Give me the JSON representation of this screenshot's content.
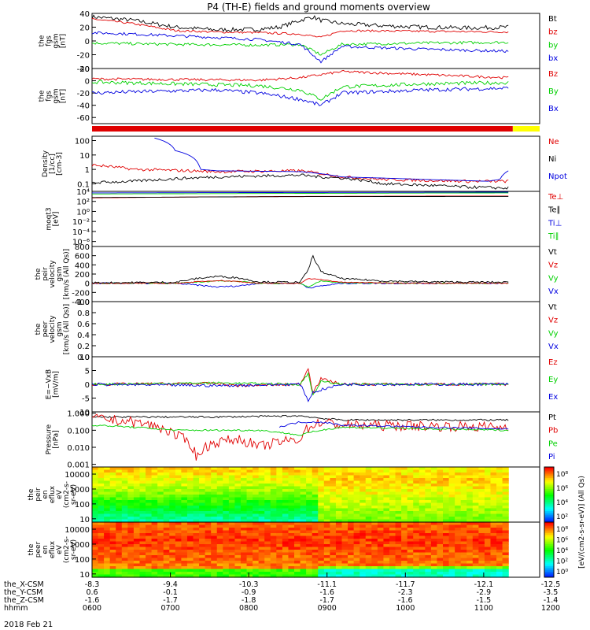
{
  "title": "P4 (TH-E) fields and ground moments overview",
  "date": "2018 Feb 21",
  "colors": {
    "black": "#000000",
    "red": "#e00000",
    "green": "#00d000",
    "blue": "#0000e0",
    "yellow": "#ffff00"
  },
  "chart_data": [
    {
      "type": "line",
      "ylabel": [
        "the",
        "fgs",
        "gsm",
        "[nT]"
      ],
      "ylim": [
        -40,
        40
      ],
      "yticks": [
        40,
        20,
        0,
        -20,
        -40
      ],
      "legend": [
        {
          "name": "Bt",
          "color": "black"
        },
        {
          "name": "bz",
          "color": "red"
        },
        {
          "name": "by",
          "color": "green"
        },
        {
          "name": "bx",
          "color": "blue"
        }
      ],
      "series": [
        {
          "name": "Bt",
          "color": "black",
          "x": [
            0,
            0.1,
            0.2,
            0.3,
            0.4,
            0.45,
            0.5,
            0.53,
            0.55,
            0.6,
            0.7,
            0.8,
            0.9,
            1
          ],
          "y": [
            35,
            30,
            20,
            16,
            17,
            20,
            30,
            35,
            30,
            25,
            22,
            20,
            19,
            20
          ],
          "noise": 3
        },
        {
          "name": "bz",
          "color": "red",
          "x": [
            0,
            0.1,
            0.2,
            0.3,
            0.4,
            0.5,
            0.55,
            0.6,
            0.8,
            1
          ],
          "y": [
            32,
            25,
            15,
            13,
            12,
            10,
            5,
            15,
            14,
            13
          ],
          "noise": 1.5
        },
        {
          "name": "by",
          "color": "green",
          "x": [
            0,
            0.2,
            0.4,
            0.5,
            0.55,
            0.6,
            0.8,
            1
          ],
          "y": [
            -3,
            -5,
            -6,
            -5,
            -20,
            -5,
            -3,
            -2
          ],
          "noise": 2
        },
        {
          "name": "bx",
          "color": "blue",
          "x": [
            0,
            0.1,
            0.3,
            0.4,
            0.5,
            0.55,
            0.6,
            0.8,
            1
          ],
          "y": [
            12,
            10,
            5,
            2,
            -5,
            -30,
            -8,
            -12,
            -15
          ],
          "noise": 2
        }
      ]
    },
    {
      "type": "line",
      "ylabel": [
        "the",
        "fgs",
        "gsm",
        "[nT]"
      ],
      "ylim": [
        -70,
        20
      ],
      "yticks": [
        20,
        0,
        -20,
        -40,
        -60
      ],
      "legend": [
        {
          "name": "Bz",
          "color": "red"
        },
        {
          "name": "By",
          "color": "green"
        },
        {
          "name": "Bx",
          "color": "blue"
        }
      ],
      "series": [
        {
          "name": "Bz",
          "color": "red",
          "x": [
            0,
            0.2,
            0.4,
            0.5,
            0.55,
            0.6,
            0.8,
            1
          ],
          "y": [
            3,
            2,
            1,
            5,
            10,
            15,
            10,
            5
          ],
          "noise": 2
        },
        {
          "name": "By",
          "color": "green",
          "x": [
            0,
            0.2,
            0.4,
            0.5,
            0.55,
            0.6,
            0.8,
            1
          ],
          "y": [
            -2,
            -5,
            -8,
            -15,
            -30,
            -10,
            -5,
            -3
          ],
          "noise": 3
        },
        {
          "name": "Bx",
          "color": "blue",
          "x": [
            0,
            0.1,
            0.3,
            0.4,
            0.5,
            0.55,
            0.6,
            0.8,
            1
          ],
          "y": [
            -20,
            -18,
            -15,
            -20,
            -30,
            -40,
            -20,
            -15,
            -12
          ],
          "noise": 3
        }
      ]
    },
    {
      "type": "line",
      "log": true,
      "ylabel": [
        "Density",
        "[1/cc]",
        "[cm-3]"
      ],
      "ylim": [
        0.03,
        200
      ],
      "yticks": [
        100,
        10,
        1,
        0.1
      ],
      "yticklabels": [
        "100",
        "10",
        "1",
        "0.1"
      ],
      "legend": [
        {
          "name": "Ne",
          "color": "red"
        },
        {
          "name": "Ni",
          "color": "black"
        },
        {
          "name": "Npot",
          "color": "blue"
        }
      ],
      "series": [
        {
          "name": "Ne",
          "color": "red",
          "x": [
            0,
            0.1,
            0.3,
            0.5,
            0.55,
            0.6,
            0.7,
            0.9,
            1
          ],
          "y": [
            2,
            1,
            0.7,
            0.8,
            0.5,
            0.3,
            0.2,
            0.15,
            0.15
          ],
          "noise": 0.1
        },
        {
          "name": "Ni",
          "color": "black",
          "x": [
            0,
            0.1,
            0.3,
            0.5,
            0.55,
            0.6,
            0.7,
            0.9,
            1
          ],
          "y": [
            0.12,
            0.15,
            0.3,
            0.4,
            0.3,
            0.25,
            0.1,
            0.06,
            0.05
          ],
          "noise": 0.1
        },
        {
          "name": "Npot",
          "color": "blue",
          "x": [
            0.15,
            0.2,
            0.26,
            0.3,
            0.5,
            0.6,
            0.8,
            0.95,
            0.98,
            1
          ],
          "y": [
            150,
            20,
            1,
            0.8,
            0.7,
            0.3,
            0.2,
            0.15,
            0.2,
            0.8
          ],
          "noise": 0
        }
      ]
    },
    {
      "type": "line",
      "log": true,
      "ylabel": [
        "moqt3",
        "[eV]"
      ],
      "ylim": [
        1e-07,
        10000
      ],
      "yticks": [
        10000,
        100,
        1,
        0.01,
        0.0001,
        1e-06
      ],
      "yticklabels": [
        "10⁴",
        "10²",
        "10⁰",
        "10⁻²",
        "10⁻⁴",
        "10⁻⁶"
      ],
      "legend": [
        {
          "name": "Te⊥",
          "color": "red"
        },
        {
          "name": "Te∥",
          "color": "black"
        },
        {
          "name": "Ti⊥",
          "color": "blue"
        },
        {
          "name": "Ti∥",
          "color": "green"
        }
      ],
      "series": [
        {
          "name": "Ti∥",
          "color": "green",
          "x": [
            0,
            0.5,
            1
          ],
          "y": [
            3000,
            4000,
            5000
          ],
          "noise": 0
        },
        {
          "name": "Ti⊥",
          "color": "blue",
          "x": [
            0,
            0.5,
            1
          ],
          "y": [
            5000,
            6000,
            7000
          ],
          "noise": 0
        },
        {
          "name": "Te⊥",
          "color": "red",
          "x": [
            0,
            0.5,
            1
          ],
          "y": [
            500,
            1000,
            1200
          ],
          "noise": 0
        },
        {
          "name": "Te∥",
          "color": "black",
          "x": [
            0,
            0.5,
            1
          ],
          "y": [
            600,
            900,
            1000
          ],
          "noise": 0
        }
      ]
    },
    {
      "type": "line",
      "ylabel": [
        "the",
        "peir",
        "velocity",
        "gsm",
        "[km/s (All Qs)]"
      ],
      "ylim": [
        -400,
        800
      ],
      "yticks": [
        800,
        600,
        400,
        200,
        0,
        -200,
        -400
      ],
      "legend": [
        {
          "name": "Vt",
          "color": "black"
        },
        {
          "name": "Vz",
          "color": "red"
        },
        {
          "name": "Vy",
          "color": "green"
        },
        {
          "name": "Vx",
          "color": "blue"
        }
      ],
      "series": [
        {
          "name": "Vx",
          "color": "blue",
          "x": [
            0,
            0.2,
            0.3,
            0.35,
            0.4,
            0.5,
            0.52,
            0.55,
            0.6,
            0.8,
            1
          ],
          "y": [
            0,
            0,
            -80,
            -60,
            0,
            0,
            -100,
            -60,
            0,
            0,
            0
          ],
          "noise": 15
        },
        {
          "name": "Vy",
          "color": "green",
          "x": [
            0,
            0.2,
            0.3,
            0.35,
            0.4,
            0.5,
            0.52,
            0.55,
            0.6,
            0.8,
            1
          ],
          "y": [
            0,
            0,
            50,
            40,
            0,
            0,
            -80,
            50,
            10,
            0,
            0
          ],
          "noise": 10
        },
        {
          "name": "Vz",
          "color": "red",
          "x": [
            0,
            0.2,
            0.3,
            0.35,
            0.4,
            0.5,
            0.52,
            0.55,
            0.6,
            0.8,
            1
          ],
          "y": [
            0,
            0,
            60,
            40,
            0,
            0,
            100,
            80,
            20,
            0,
            0
          ],
          "noise": 10
        },
        {
          "name": "Vt",
          "color": "black",
          "x": [
            0,
            0.2,
            0.25,
            0.3,
            0.35,
            0.4,
            0.5,
            0.52,
            0.53,
            0.55,
            0.6,
            0.7,
            0.8,
            1
          ],
          "y": [
            10,
            20,
            100,
            150,
            120,
            30,
            20,
            300,
            600,
            250,
            100,
            50,
            30,
            20
          ],
          "noise": 20
        }
      ]
    },
    {
      "type": "line",
      "ylabel": [
        "the",
        "peer",
        "velocity",
        "gsm",
        "[km/s (All Qs)]"
      ],
      "ylim": [
        0,
        1
      ],
      "yticks": [
        1.0,
        0.8,
        0.6,
        0.4,
        0.2,
        0.0
      ],
      "yticklabels": [
        "1.0",
        "0.8",
        "0.6",
        "0.4",
        "0.2",
        "0.0"
      ],
      "legend": [
        {
          "name": "Vt",
          "color": "black"
        },
        {
          "name": "Vz",
          "color": "red"
        },
        {
          "name": "Vy",
          "color": "green"
        },
        {
          "name": "Vx",
          "color": "blue"
        }
      ],
      "series": []
    },
    {
      "type": "line",
      "ylabel": [
        "E=−VxB",
        "[mV/m]"
      ],
      "ylim": [
        -10,
        10
      ],
      "yticks": [
        10,
        5,
        0,
        -5,
        -10
      ],
      "legend": [
        {
          "name": "Ez",
          "color": "red"
        },
        {
          "name": "Ey",
          "color": "green"
        },
        {
          "name": "Ex",
          "color": "blue"
        }
      ],
      "series": [
        {
          "name": "Ez",
          "color": "red",
          "x": [
            0,
            0.3,
            0.35,
            0.5,
            0.52,
            0.53,
            0.55,
            0.6,
            1
          ],
          "y": [
            0,
            0.3,
            -0.5,
            0,
            6,
            -3,
            2,
            0,
            0
          ],
          "noise": 0.5
        },
        {
          "name": "Ey",
          "color": "green",
          "x": [
            0,
            0.3,
            0.5,
            0.52,
            0.53,
            0.55,
            0.6,
            1
          ],
          "y": [
            0,
            0.5,
            0,
            4,
            -4,
            1,
            0,
            0
          ],
          "noise": 0.4
        },
        {
          "name": "Ex",
          "color": "blue",
          "x": [
            0,
            0.3,
            0.5,
            0.52,
            0.53,
            0.55,
            0.6,
            1
          ],
          "y": [
            0,
            -0.5,
            0,
            -6,
            -3,
            -2,
            0,
            0
          ],
          "noise": 0.5
        }
      ]
    },
    {
      "type": "line",
      "log": true,
      "ylabel": [
        "Pressure",
        "[nPa]"
      ],
      "ylim": [
        0.0007,
        1.2
      ],
      "yticks": [
        1,
        0.1,
        0.01,
        0.001
      ],
      "yticklabels": [
        "1.000",
        "0.100",
        "0.010",
        "0.001"
      ],
      "legend": [
        {
          "name": "Pt",
          "color": "black"
        },
        {
          "name": "Pb",
          "color": "red"
        },
        {
          "name": "Pe",
          "color": "green"
        },
        {
          "name": "Pi",
          "color": "blue"
        }
      ],
      "series": [
        {
          "name": "Pt",
          "color": "black",
          "x": [
            0,
            0.3,
            0.5,
            0.55,
            0.6,
            1
          ],
          "y": [
            0.6,
            0.6,
            0.7,
            0.5,
            0.4,
            0.4
          ],
          "noise": 0.05
        },
        {
          "name": "Pb",
          "color": "red",
          "x": [
            0,
            0.1,
            0.2,
            0.25,
            0.3,
            0.35,
            0.4,
            0.5,
            0.55,
            0.6,
            0.8,
            1
          ],
          "y": [
            0.5,
            0.3,
            0.05,
            0.002,
            0.02,
            0.03,
            0.01,
            0.03,
            0.3,
            0.2,
            0.18,
            0.15
          ],
          "noise": 0.3
        },
        {
          "name": "Pe",
          "color": "green",
          "x": [
            0,
            0.1,
            0.2,
            0.4,
            0.5,
            0.55,
            0.6,
            0.8,
            1
          ],
          "y": [
            0.2,
            0.15,
            0.1,
            0.1,
            0.05,
            0.1,
            0.15,
            0.12,
            0.1
          ],
          "noise": 0.05
        },
        {
          "name": "Pi",
          "color": "blue",
          "x": [
            0.45,
            0.5,
            0.55,
            0.6,
            0.8,
            1
          ],
          "y": [
            0.15,
            0.3,
            0.3,
            0.2,
            0.15,
            0.12
          ],
          "noise": 0.05
        }
      ]
    },
    {
      "type": "heatmap",
      "log": true,
      "ylabel": [
        "the",
        "peir",
        "en",
        "eflux",
        "eV",
        "(cm2-s-",
        "sr-eV)"
      ],
      "ylim": [
        6,
        30000
      ],
      "yticks": [
        10000,
        1000,
        100,
        10
      ],
      "yticklabels": [
        "10000",
        "1000",
        "100",
        "10"
      ]
    },
    {
      "type": "heatmap",
      "log": true,
      "ylabel": [
        "the",
        "peer",
        "en",
        "eflux",
        "eV",
        "(cm2-s-",
        "sr-eV)"
      ],
      "ylim": [
        6,
        30000
      ],
      "yticks": [
        10000,
        1000,
        100,
        10
      ],
      "yticklabels": [
        "10000",
        "1000",
        "100",
        "10"
      ]
    }
  ],
  "colorbar": {
    "label": "[eV/(cm2-s-sr-eV)] (All Qs)",
    "ticks1": [
      "10⁸",
      "10⁶",
      "10⁴",
      "10²"
    ],
    "ticks2": [
      "10⁸",
      "10⁶",
      "10⁴",
      "10²",
      "10⁰"
    ]
  },
  "xaxis": {
    "positions": [
      0.0,
      0.175,
      0.35,
      0.525,
      0.7,
      0.875,
      1.05
    ],
    "rows": [
      {
        "label": "the_X-CSM",
        "values": [
          "-8.3",
          "-9.4",
          "-10.3",
          "-11.1",
          "-11.7",
          "-12.1",
          "-12.5"
        ]
      },
      {
        "label": "the_Y-CSM",
        "values": [
          "0.6",
          "-0.1",
          "-0.9",
          "-1.6",
          "-2.3",
          "-2.9",
          "-3.5"
        ]
      },
      {
        "label": "the_Z-CSM",
        "values": [
          "-1.6",
          "-1.7",
          "-1.8",
          "-1.7",
          "-1.6",
          "-1.5",
          "-1.4"
        ]
      },
      {
        "label": "hhmm",
        "values": [
          "0600",
          "0700",
          "0800",
          "0900",
          "1000",
          "1100",
          "1200"
        ]
      }
    ]
  }
}
